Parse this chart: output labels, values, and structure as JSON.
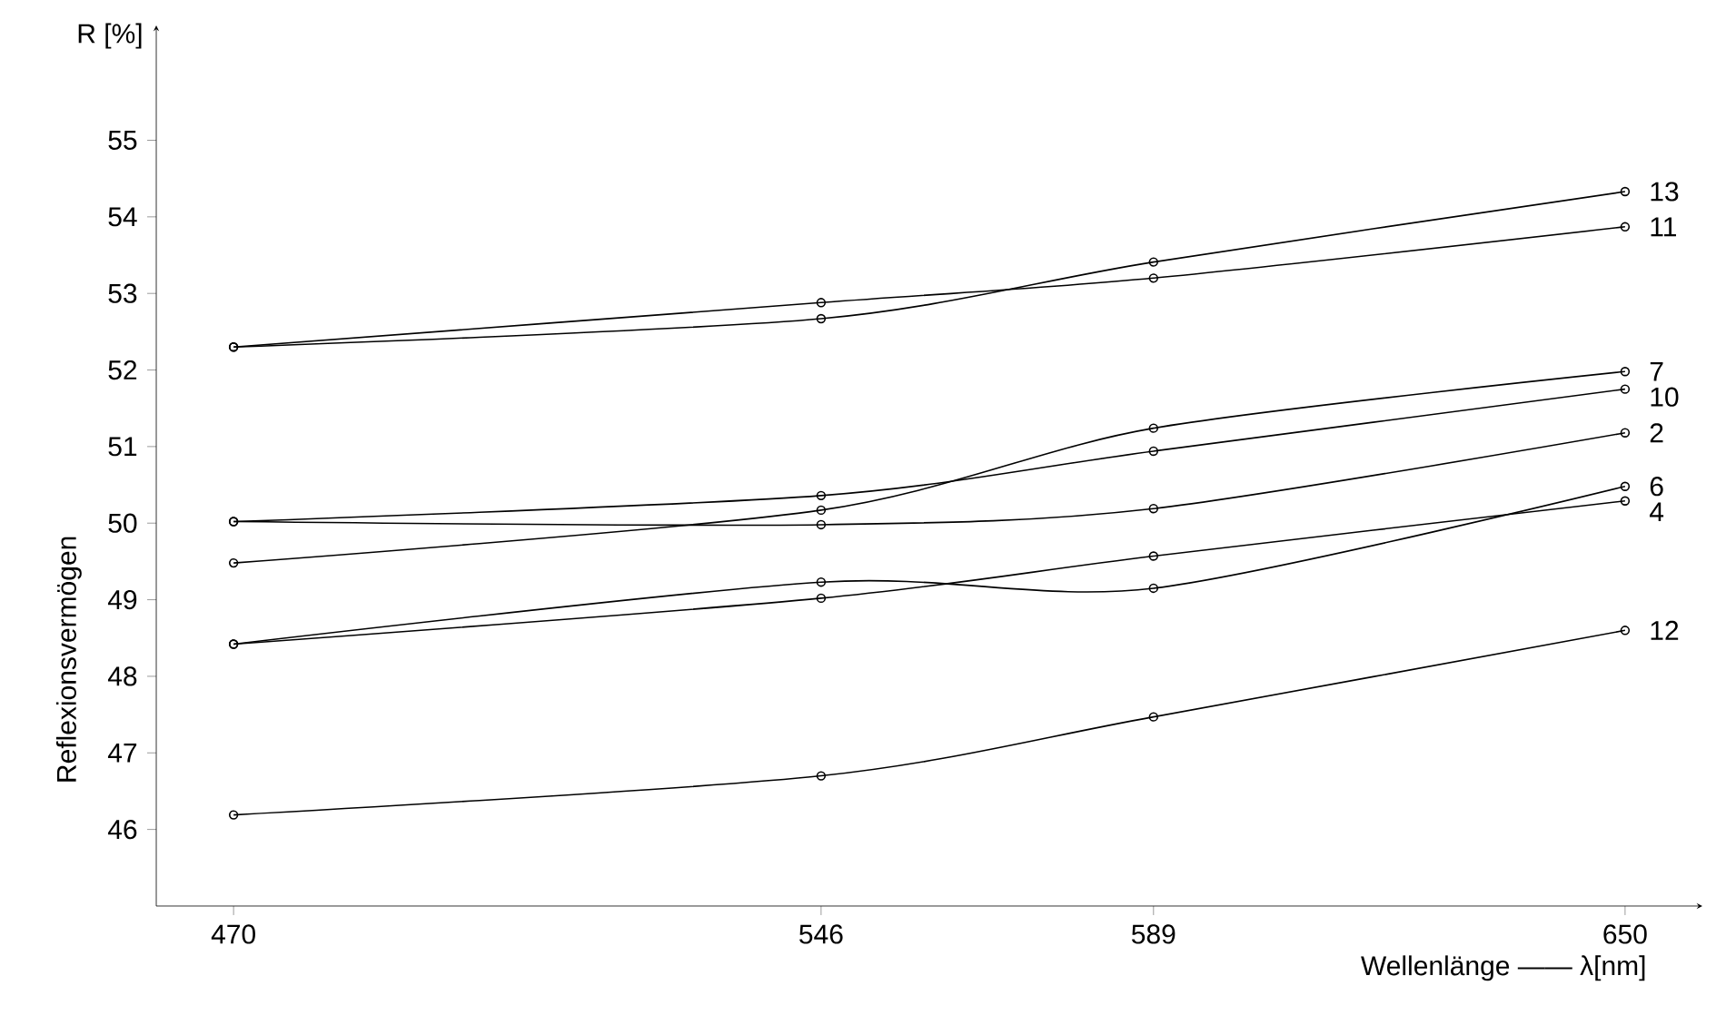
{
  "chart_data": {
    "type": "line",
    "xlabel": "Wellenlänge —— λ[nm]",
    "ylabel": "Reflexionsvermögen",
    "annotations": [
      "R [%]"
    ],
    "x": [
      470,
      546,
      589,
      650
    ],
    "xlim": [
      460,
      660
    ],
    "xticks": [
      470,
      546,
      589,
      650
    ],
    "ylim": [
      45,
      56.5
    ],
    "yticks": [
      46,
      47,
      48,
      49,
      50,
      51,
      52,
      53,
      54,
      55
    ],
    "marker": "circle",
    "legend": false,
    "grid": false,
    "series": [
      {
        "name": "13",
        "color": "#000000",
        "values": [
          52.3,
          52.67,
          53.41,
          54.33
        ]
      },
      {
        "name": "11",
        "color": "#000000",
        "values": [
          52.3,
          52.88,
          53.2,
          53.87
        ]
      },
      {
        "name": "7",
        "color": "#000000",
        "values": [
          49.48,
          50.17,
          51.24,
          51.98
        ]
      },
      {
        "name": "10",
        "color": "#000000",
        "values": [
          50.02,
          50.36,
          50.94,
          51.75
        ]
      },
      {
        "name": "2",
        "color": "#000000",
        "values": [
          50.02,
          49.98,
          50.19,
          51.18
        ]
      },
      {
        "name": "6",
        "color": "#000000",
        "values": [
          48.42,
          49.23,
          49.15,
          50.48
        ]
      },
      {
        "name": "4",
        "color": "#000000",
        "values": [
          48.42,
          49.02,
          49.57,
          50.29
        ]
      },
      {
        "name": "12",
        "color": "#000000",
        "values": [
          46.19,
          46.7,
          47.47,
          48.6
        ]
      }
    ]
  }
}
